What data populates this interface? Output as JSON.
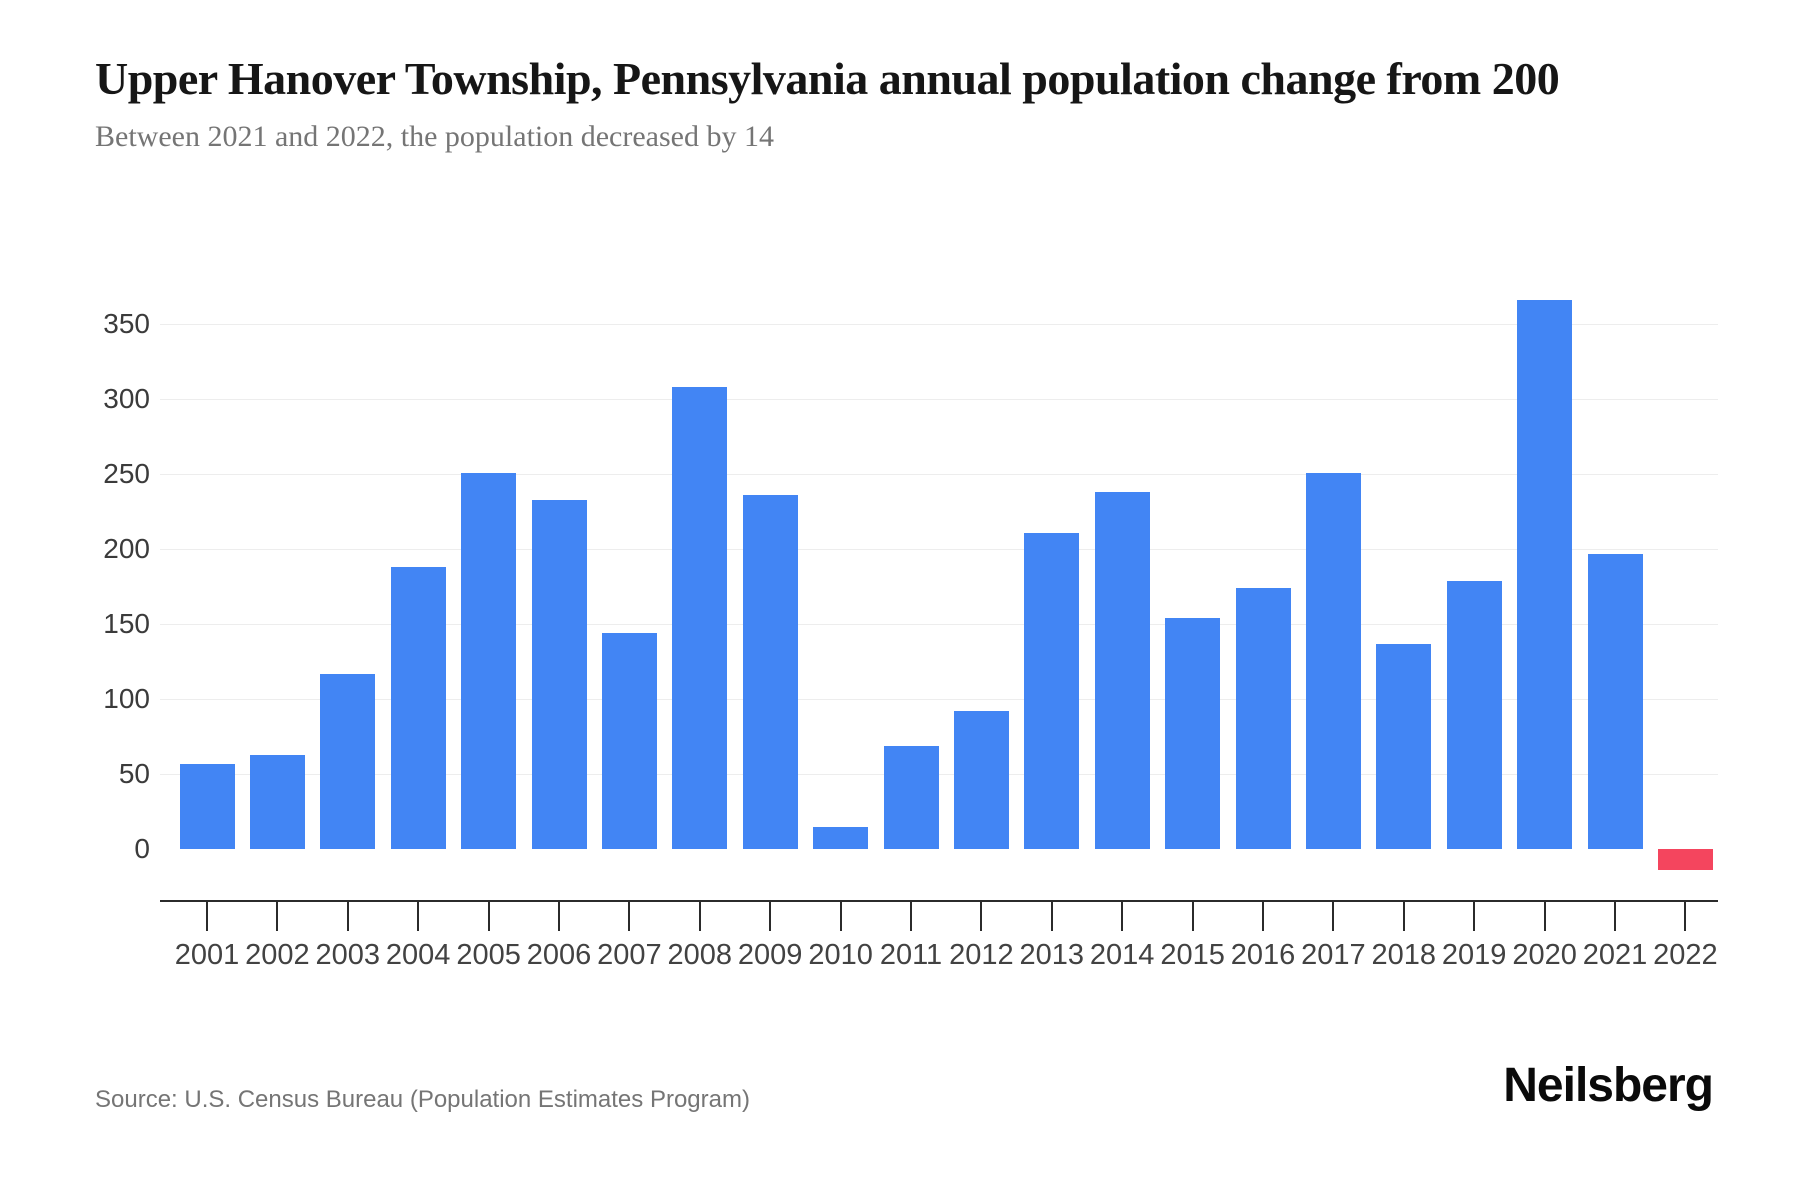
{
  "header": {
    "title": "Upper Hanover Township, Pennsylvania annual population change from 200",
    "subtitle": "Between 2021 and 2022, the population decreased by 14"
  },
  "chart_data": {
    "type": "bar",
    "title": "Upper Hanover Township, Pennsylvania annual population change from 200",
    "subtitle": "Between 2021 and 2022, the population decreased by 14",
    "categories": [
      "2001",
      "2002",
      "2003",
      "2004",
      "2005",
      "2006",
      "2007",
      "2008",
      "2009",
      "2010",
      "2011",
      "2012",
      "2013",
      "2014",
      "2015",
      "2016",
      "2017",
      "2018",
      "2019",
      "2020",
      "2021",
      "2022"
    ],
    "values": [
      57,
      63,
      117,
      188,
      251,
      233,
      144,
      308,
      236,
      15,
      69,
      92,
      211,
      238,
      154,
      174,
      251,
      137,
      179,
      366,
      197,
      -14
    ],
    "series_name": "Annual population change",
    "xlabel": "",
    "ylabel": "",
    "yticks": [
      0,
      50,
      100,
      150,
      200,
      250,
      300,
      350
    ],
    "ylim": [
      -35,
      400
    ],
    "grid": "horizontal",
    "legend": false,
    "bar_color": "#4285F4",
    "negative_bar_color": "#F4455E"
  },
  "footer": {
    "source": "Source: U.S. Census Bureau (Population Estimates Program)",
    "brand": "Neilsberg"
  }
}
